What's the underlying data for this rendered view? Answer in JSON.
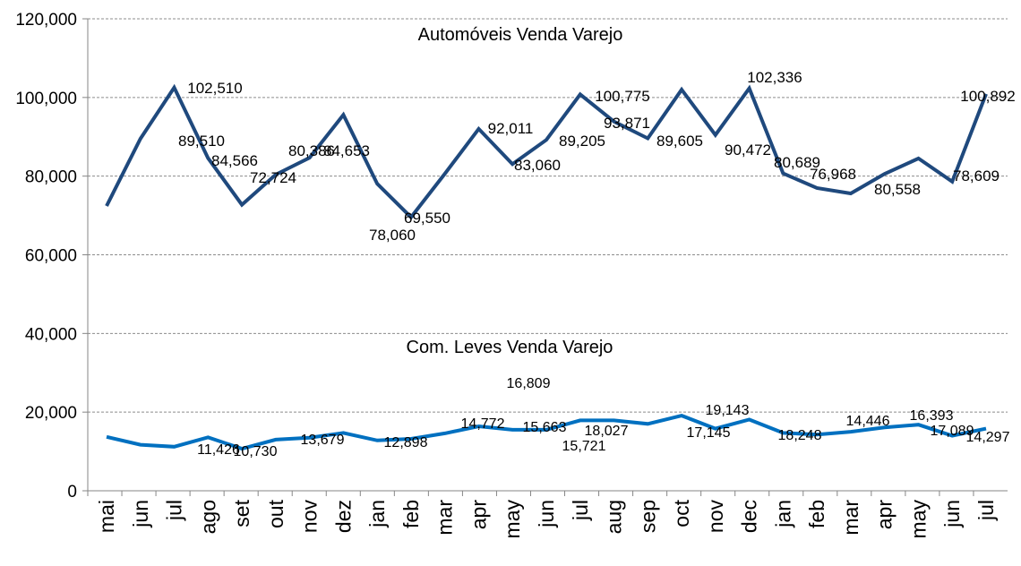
{
  "chart_data": {
    "type": "line",
    "title": "",
    "xlabel": "",
    "ylabel": "",
    "ylim": [
      0,
      120000
    ],
    "ytick_step": 20000,
    "yticks": [
      "0",
      "20,000",
      "40,000",
      "60,000",
      "80,000",
      "100,000",
      "120,000"
    ],
    "grid": true,
    "legend": "none",
    "categories": [
      "mai",
      "jun",
      "jul",
      "ago",
      "set",
      "out",
      "nov",
      "dez",
      "jan",
      "feb",
      "mar",
      "apr",
      "may",
      "jun",
      "jul",
      "aug",
      "sep",
      "oct",
      "nov",
      "dec",
      "jan",
      "feb",
      "mar",
      "apr",
      "may",
      "jun",
      "jul"
    ],
    "series": [
      {
        "name": "Automóveis Venda Varejo",
        "color": "#1F497D",
        "values": [
          72400,
          89510,
          102510,
          84566,
          72724,
          80386,
          84653,
          95600,
          78060,
          69550,
          80600,
          92011,
          83060,
          89205,
          100775,
          93871,
          89605,
          102000,
          90472,
          102336,
          80689,
          76968,
          75600,
          80558,
          84500,
          78609,
          100892
        ],
        "data_labels": [
          "102,510",
          "89,510",
          "84,566",
          "72,724",
          "80,386",
          "84,653",
          "78,060",
          "69,550",
          "92,011",
          "83,060",
          "89,205",
          "100,775",
          "93,871",
          "89,605",
          "90,472",
          "102,336",
          "80,689",
          "76,968",
          "80,558",
          "78,609",
          "100,892"
        ]
      },
      {
        "name": "Com. Leves Venda Varejo",
        "color": "#0070C0",
        "values": [
          13700,
          11700,
          11200,
          13600,
          10700,
          13000,
          13500,
          14700,
          12800,
          13200,
          14600,
          16400,
          15500,
          15500,
          17900,
          17900,
          17000,
          19100,
          15800,
          18100,
          14700,
          14300,
          15000,
          16100,
          16800,
          14000,
          15800
        ],
        "data_labels": [
          "16,809",
          "19,143",
          "11,426",
          "10,730",
          "13,679",
          "12,898",
          "14,772",
          "15,663",
          "18,027",
          "15,721",
          "17,145",
          "18,248",
          "14,446",
          "16,393",
          "17,089",
          "14,297"
        ]
      }
    ]
  }
}
